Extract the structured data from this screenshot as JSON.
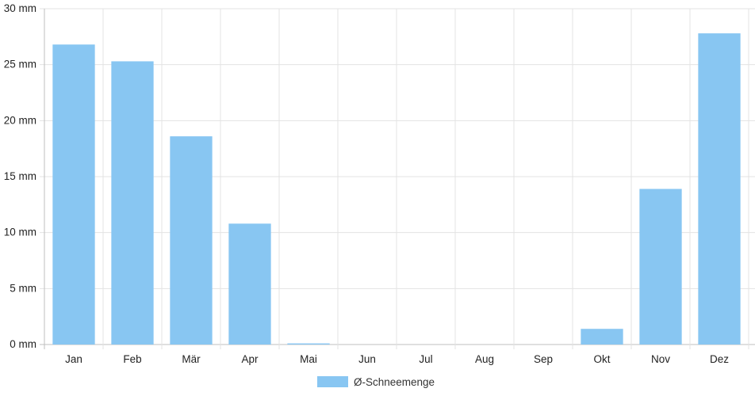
{
  "chart_data": {
    "type": "bar",
    "categories": [
      "Jan",
      "Feb",
      "Mär",
      "Apr",
      "Mai",
      "Jun",
      "Jul",
      "Aug",
      "Sep",
      "Okt",
      "Nov",
      "Dez"
    ],
    "series": [
      {
        "name": "Ø-Schneemenge",
        "values": [
          26.8,
          25.3,
          18.6,
          10.8,
          0.1,
          0,
          0,
          0,
          0,
          1.4,
          13.9,
          27.8
        ]
      }
    ],
    "ylim": [
      0,
      30
    ],
    "yticks": [
      0,
      5,
      10,
      15,
      20,
      25,
      30
    ],
    "y_unit_suffix": " mm",
    "grid": true,
    "legend_position": "bottom",
    "colors": {
      "bar": "#88c6f2",
      "grid": "#e3e3e3",
      "axis": "#bfbfbf"
    }
  }
}
